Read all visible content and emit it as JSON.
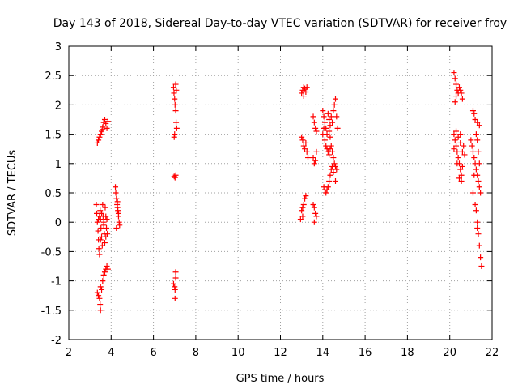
{
  "chart_data": {
    "type": "scatter",
    "title": "Day 143 of 2018, Sidereal Day-to-day VTEC variation (SDTVAR) for receiver froy",
    "xlabel": "GPS time / hours",
    "ylabel": "SDTVAR / TECUs",
    "xlim": [
      2,
      22
    ],
    "ylim": [
      -2,
      3
    ],
    "xticks": [
      "2",
      "4",
      "6",
      "8",
      "10",
      "12",
      "14",
      "16",
      "18",
      "20",
      "22"
    ],
    "yticks": [
      "-2",
      "-1.5",
      "-1",
      "-0.5",
      "0",
      "0.5",
      "1",
      "1.5",
      "2",
      "2.5",
      "3"
    ],
    "grid": true,
    "marker": "+",
    "marker_color": "#ff0000",
    "series": [
      {
        "name": "SDTVAR",
        "points": [
          [
            3.35,
            1.35
          ],
          [
            3.4,
            1.4
          ],
          [
            3.45,
            1.45
          ],
          [
            3.5,
            1.5
          ],
          [
            3.55,
            1.55
          ],
          [
            3.6,
            1.62
          ],
          [
            3.65,
            1.7
          ],
          [
            3.7,
            1.75
          ],
          [
            3.75,
            1.68
          ],
          [
            3.8,
            1.6
          ],
          [
            3.85,
            1.72
          ],
          [
            3.6,
            1.58
          ],
          [
            3.3,
            0.3
          ],
          [
            3.32,
            0.15
          ],
          [
            3.35,
            0.0
          ],
          [
            3.38,
            -0.15
          ],
          [
            3.4,
            -0.3
          ],
          [
            3.42,
            -0.45
          ],
          [
            3.45,
            -0.55
          ],
          [
            3.48,
            0.2
          ],
          [
            3.5,
            0.05
          ],
          [
            3.52,
            -0.1
          ],
          [
            3.55,
            -0.25
          ],
          [
            3.58,
            -0.4
          ],
          [
            3.6,
            0.3
          ],
          [
            3.62,
            0.1
          ],
          [
            3.65,
            -0.05
          ],
          [
            3.68,
            -0.2
          ],
          [
            3.7,
            -0.35
          ],
          [
            3.72,
            0.25
          ],
          [
            3.75,
            0.1
          ],
          [
            3.78,
            -0.1
          ],
          [
            3.8,
            0.05
          ],
          [
            3.82,
            -0.2
          ],
          [
            3.45,
            0.1
          ],
          [
            3.55,
            0.15
          ],
          [
            3.65,
            0.0
          ],
          [
            3.5,
            -0.3
          ],
          [
            3.4,
            0.05
          ],
          [
            3.75,
            -0.25
          ],
          [
            3.35,
            -1.2
          ],
          [
            3.4,
            -1.25
          ],
          [
            3.45,
            -1.3
          ],
          [
            3.48,
            -1.4
          ],
          [
            3.5,
            -1.5
          ],
          [
            3.55,
            -1.15
          ],
          [
            3.6,
            -1.0
          ],
          [
            3.65,
            -0.9
          ],
          [
            3.7,
            -0.85
          ],
          [
            3.75,
            -0.8
          ],
          [
            3.8,
            -0.75
          ],
          [
            3.85,
            -0.8
          ],
          [
            3.5,
            -1.1
          ],
          [
            4.2,
            0.6
          ],
          [
            4.22,
            0.5
          ],
          [
            4.25,
            0.4
          ],
          [
            4.28,
            0.3
          ],
          [
            4.3,
            0.25
          ],
          [
            4.32,
            0.2
          ],
          [
            4.35,
            0.1
          ],
          [
            4.38,
            0.0
          ],
          [
            4.4,
            -0.05
          ],
          [
            4.3,
            0.35
          ],
          [
            4.25,
            -0.1
          ],
          [
            4.35,
            0.15
          ],
          [
            6.95,
            2.3
          ],
          [
            6.97,
            2.2
          ],
          [
            7.0,
            2.1
          ],
          [
            7.02,
            2.0
          ],
          [
            7.05,
            1.9
          ],
          [
            7.05,
            2.35
          ],
          [
            7.07,
            1.7
          ],
          [
            7.1,
            1.6
          ],
          [
            7.0,
            1.5
          ],
          [
            6.98,
            1.45
          ],
          [
            7.08,
            2.25
          ],
          [
            6.98,
            0.78
          ],
          [
            7.02,
            0.76
          ],
          [
            7.05,
            0.8
          ],
          [
            6.95,
            -1.05
          ],
          [
            7.0,
            -1.1
          ],
          [
            7.02,
            -1.15
          ],
          [
            7.05,
            -0.95
          ],
          [
            7.05,
            -0.85
          ],
          [
            7.02,
            -1.3
          ],
          [
            13.0,
            2.2
          ],
          [
            13.05,
            2.25
          ],
          [
            13.1,
            2.3
          ],
          [
            13.15,
            2.28
          ],
          [
            13.2,
            2.22
          ],
          [
            13.25,
            2.3
          ],
          [
            13.1,
            2.15
          ],
          [
            13.0,
            1.45
          ],
          [
            13.05,
            1.4
          ],
          [
            13.1,
            1.3
          ],
          [
            13.15,
            1.25
          ],
          [
            13.2,
            1.35
          ],
          [
            13.25,
            1.2
          ],
          [
            13.3,
            1.1
          ],
          [
            13.0,
            0.2
          ],
          [
            13.05,
            0.25
          ],
          [
            13.1,
            0.3
          ],
          [
            13.15,
            0.4
          ],
          [
            13.2,
            0.45
          ],
          [
            12.95,
            0.05
          ],
          [
            13.05,
            0.1
          ],
          [
            13.55,
            1.8
          ],
          [
            13.6,
            1.7
          ],
          [
            13.65,
            1.6
          ],
          [
            13.7,
            1.55
          ],
          [
            13.55,
            1.1
          ],
          [
            13.6,
            1.0
          ],
          [
            13.65,
            1.05
          ],
          [
            13.7,
            1.2
          ],
          [
            13.55,
            0.3
          ],
          [
            13.6,
            0.25
          ],
          [
            13.65,
            0.15
          ],
          [
            13.7,
            0.1
          ],
          [
            13.6,
            0.0
          ],
          [
            14.0,
            1.9
          ],
          [
            14.05,
            1.8
          ],
          [
            14.1,
            1.7
          ],
          [
            14.15,
            1.6
          ],
          [
            14.2,
            1.5
          ],
          [
            14.25,
            1.85
          ],
          [
            14.3,
            1.75
          ],
          [
            14.35,
            1.65
          ],
          [
            14.4,
            1.8
          ],
          [
            14.45,
            1.7
          ],
          [
            14.5,
            1.9
          ],
          [
            14.55,
            2.0
          ],
          [
            14.6,
            2.1
          ],
          [
            14.65,
            1.8
          ],
          [
            14.7,
            1.6
          ],
          [
            14.1,
            1.4
          ],
          [
            14.15,
            1.3
          ],
          [
            14.2,
            1.25
          ],
          [
            14.25,
            1.2
          ],
          [
            14.3,
            1.15
          ],
          [
            14.35,
            1.25
          ],
          [
            14.4,
            1.3
          ],
          [
            14.45,
            1.2
          ],
          [
            14.5,
            1.1
          ],
          [
            14.55,
            1.0
          ],
          [
            14.6,
            0.95
          ],
          [
            14.65,
            0.9
          ],
          [
            14.3,
            1.55
          ],
          [
            14.35,
            1.45
          ],
          [
            14.0,
            1.5
          ],
          [
            14.05,
            1.6
          ],
          [
            14.05,
            0.6
          ],
          [
            14.1,
            0.55
          ],
          [
            14.15,
            0.5
          ],
          [
            14.2,
            0.55
          ],
          [
            14.25,
            0.6
          ],
          [
            14.3,
            0.7
          ],
          [
            14.35,
            0.8
          ],
          [
            14.4,
            0.9
          ],
          [
            14.45,
            0.95
          ],
          [
            14.5,
            0.85
          ],
          [
            14.6,
            0.7
          ],
          [
            20.2,
            2.55
          ],
          [
            20.25,
            2.45
          ],
          [
            20.3,
            2.35
          ],
          [
            20.35,
            2.25
          ],
          [
            20.4,
            2.2
          ],
          [
            20.45,
            2.3
          ],
          [
            20.5,
            2.25
          ],
          [
            20.55,
            2.2
          ],
          [
            20.6,
            2.1
          ],
          [
            20.3,
            2.15
          ],
          [
            20.25,
            2.05
          ],
          [
            20.2,
            1.5
          ],
          [
            20.25,
            1.4
          ],
          [
            20.3,
            1.3
          ],
          [
            20.35,
            1.2
          ],
          [
            20.4,
            1.1
          ],
          [
            20.45,
            1.0
          ],
          [
            20.5,
            0.9
          ],
          [
            20.55,
            0.8
          ],
          [
            20.6,
            1.2
          ],
          [
            20.65,
            1.3
          ],
          [
            20.7,
            1.15
          ],
          [
            20.3,
            1.55
          ],
          [
            20.4,
            1.45
          ],
          [
            20.5,
            1.35
          ],
          [
            20.45,
            0.75
          ],
          [
            20.55,
            0.7
          ],
          [
            20.6,
            0.95
          ],
          [
            20.2,
            1.25
          ],
          [
            20.35,
            1.0
          ],
          [
            20.5,
            1.5
          ],
          [
            21.0,
            1.4
          ],
          [
            21.05,
            1.3
          ],
          [
            21.1,
            1.2
          ],
          [
            21.15,
            1.1
          ],
          [
            21.2,
            1.0
          ],
          [
            21.25,
            0.9
          ],
          [
            21.3,
            0.8
          ],
          [
            21.35,
            0.7
          ],
          [
            21.4,
            0.6
          ],
          [
            21.45,
            0.5
          ],
          [
            21.1,
            1.9
          ],
          [
            21.15,
            1.85
          ],
          [
            21.2,
            1.75
          ],
          [
            21.3,
            1.7
          ],
          [
            21.4,
            1.65
          ],
          [
            21.25,
            1.5
          ],
          [
            21.3,
            1.4
          ],
          [
            21.35,
            1.2
          ],
          [
            21.4,
            1.0
          ],
          [
            21.2,
            0.3
          ],
          [
            21.25,
            0.2
          ],
          [
            21.3,
            0.0
          ],
          [
            21.35,
            -0.2
          ],
          [
            21.4,
            -0.4
          ],
          [
            21.45,
            -0.6
          ],
          [
            21.5,
            -0.75
          ],
          [
            21.3,
            -0.1
          ],
          [
            21.1,
            0.5
          ],
          [
            21.15,
            0.8
          ]
        ]
      }
    ]
  }
}
